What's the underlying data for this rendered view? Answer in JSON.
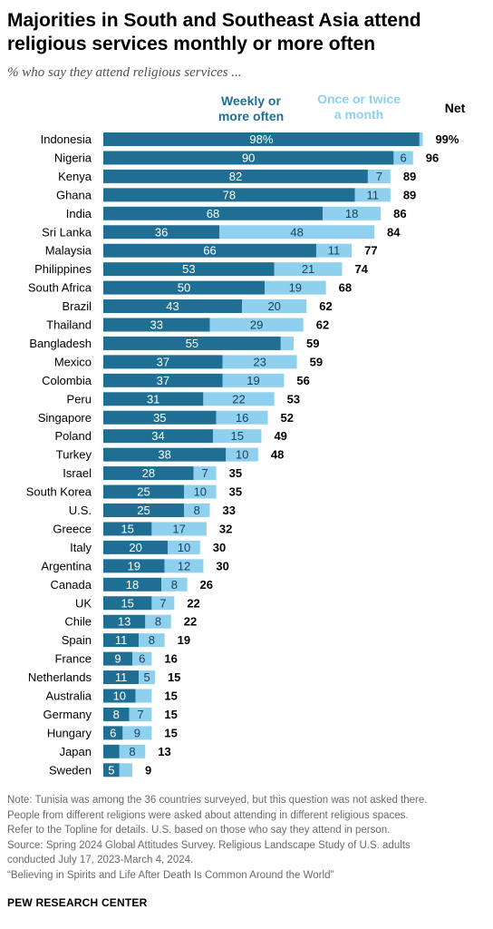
{
  "title": "Majorities in South and Southeast Asia attend religious services monthly or more often",
  "subtitle": "% who say they attend religious services ...",
  "colors": {
    "weekly": "#1f6f94",
    "monthly": "#8fd0ef",
    "weekly_label": "#ffffff",
    "monthly_label": "#1c3f57",
    "net": "#000000"
  },
  "chart_data": {
    "type": "bar",
    "stacked": true,
    "orientation": "horizontal",
    "categories": [
      "Indonesia",
      "Nigeria",
      "Kenya",
      "Ghana",
      "India",
      "Sri Lanka",
      "Malaysia",
      "Philippines",
      "South Africa",
      "Brazil",
      "Thailand",
      "Bangladesh",
      "Mexico",
      "Colombia",
      "Peru",
      "Singapore",
      "Poland",
      "Turkey",
      "Israel",
      "South Korea",
      "U.S.",
      "Greece",
      "Italy",
      "Argentina",
      "Canada",
      "UK",
      "Chile",
      "Spain",
      "France",
      "Netherlands",
      "Australia",
      "Germany",
      "Hungary",
      "Japan",
      "Sweden"
    ],
    "series": [
      {
        "name": "Weekly or more often",
        "values": [
          98,
          90,
          82,
          78,
          68,
          36,
          66,
          53,
          50,
          43,
          33,
          55,
          37,
          37,
          31,
          35,
          34,
          38,
          28,
          25,
          25,
          15,
          20,
          19,
          18,
          15,
          13,
          11,
          9,
          11,
          10,
          8,
          6,
          5,
          5
        ],
        "labels": [
          "98%",
          "90",
          "82",
          "78",
          "68",
          "36",
          "66",
          "53",
          "50",
          "43",
          "33",
          "55",
          "37",
          "37",
          "31",
          "35",
          "34",
          "38",
          "28",
          "25",
          "25",
          "15",
          "20",
          "19",
          "18",
          "15",
          "13",
          "11",
          "9",
          "11",
          "10",
          "8",
          "6",
          "",
          "5"
        ]
      },
      {
        "name": "Once or twice a month",
        "values": [
          1,
          6,
          7,
          11,
          18,
          48,
          11,
          21,
          19,
          20,
          29,
          4,
          23,
          19,
          22,
          16,
          15,
          10,
          7,
          10,
          8,
          17,
          10,
          12,
          8,
          7,
          8,
          8,
          6,
          5,
          5,
          7,
          9,
          8,
          4
        ],
        "labels": [
          "",
          "6",
          "7",
          "11",
          "18",
          "48",
          "11",
          "21",
          "19",
          "20",
          "29",
          "",
          "23",
          "19",
          "22",
          "16",
          "15",
          "10",
          "7",
          "10",
          "8",
          "17",
          "10",
          "12",
          "8",
          "7",
          "8",
          "8",
          "6",
          "5",
          "",
          "7",
          "9",
          "8",
          ""
        ]
      }
    ],
    "net": [
      "99%",
      "96",
      "89",
      "89",
      "86",
      "84",
      "77",
      "74",
      "68",
      "62",
      "62",
      "59",
      "59",
      "56",
      "53",
      "52",
      "49",
      "48",
      "35",
      "35",
      "33",
      "32",
      "30",
      "30",
      "26",
      "22",
      "22",
      "19",
      "16",
      "15",
      "15",
      "15",
      "15",
      "13",
      "9"
    ],
    "net_label": "Net",
    "legend": [
      "Weekly or more often",
      "Once or twice a month"
    ],
    "legend_lines": {
      "weekly": [
        "Weekly or",
        "more often"
      ],
      "monthly": [
        "Once or twice",
        "a month"
      ]
    },
    "xlim": [
      0,
      100
    ]
  },
  "notes": [
    "Note: Tunisia was among the 36 countries surveyed, but this question was not asked there.",
    "People from different religions were asked about attending in different religious spaces.",
    "Refer to the Topline for details. U.S. based on those who say they attend in person.",
    "Source: Spring 2024 Global Attitudes Survey. Religious Landscape Study of U.S. adults",
    "conducted July 17, 2023-March 4, 2024.",
    "“Believing in Spirits and Life After Death Is Common Around the World”"
  ],
  "footer": "PEW RESEARCH CENTER"
}
